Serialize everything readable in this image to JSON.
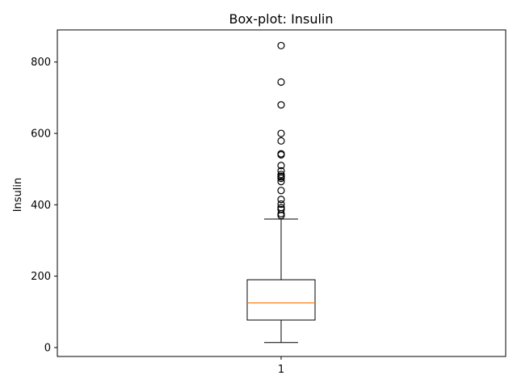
{
  "chart_data": {
    "type": "box",
    "title": "Box-plot: Insulin",
    "xlabel": "",
    "ylabel": "Insulin",
    "x_ticks": [
      "1"
    ],
    "ylim": [
      -25,
      890
    ],
    "y_ticks": [
      0,
      200,
      400,
      600,
      800
    ],
    "grid": false,
    "boxes": [
      {
        "category": "1",
        "whisker_low": 14,
        "q1": 77,
        "median": 125,
        "q3": 190,
        "whisker_high": 360,
        "outliers": [
          370,
          375,
          387,
          392,
          402,
          415,
          440,
          465,
          474,
          478,
          480,
          485,
          495,
          510,
          540,
          543,
          579,
          600,
          680,
          744,
          846
        ]
      }
    ],
    "colors": {
      "box": "#000000",
      "median": "#ff7f0e",
      "outlier": "#000000"
    }
  }
}
